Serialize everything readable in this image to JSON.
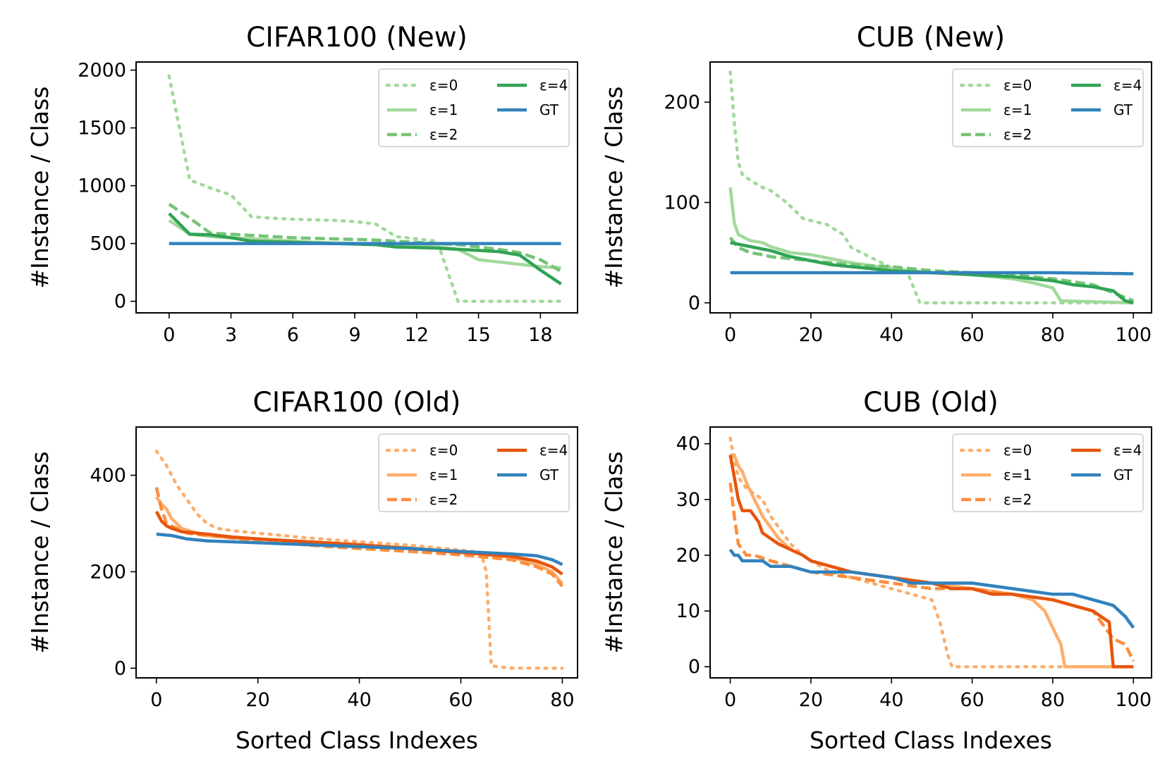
{
  "palette": {
    "new": [
      "#a1d99b",
      "#a1d99b",
      "#74c476",
      "#31a354"
    ],
    "old": [
      "#fdae6b",
      "#fdae6b",
      "#fd8d3c",
      "#e6550d"
    ],
    "gt": "#3182bd"
  },
  "chart_data": [
    {
      "type": "line",
      "title": "CIFAR100 (New)",
      "xlabel": "",
      "ylabel": "#Instance / Class",
      "xlim": [
        -1.6,
        19.8
      ],
      "ylim": [
        -100,
        2070
      ],
      "xticks": [
        0,
        3,
        6,
        9,
        12,
        15,
        18
      ],
      "yticks": [
        0,
        500,
        1000,
        1500,
        2000
      ],
      "group": "new",
      "legend": [
        "ε=0",
        "ε=1",
        "ε=2",
        "ε=4",
        "GT"
      ],
      "series": [
        {
          "name": "ε=0",
          "style": "dotted",
          "x": [
            0,
            1,
            2,
            3,
            4,
            5,
            6,
            7,
            8,
            9,
            10,
            11,
            12,
            13,
            14,
            15,
            16,
            17,
            18,
            19
          ],
          "y": [
            1950,
            1050,
            980,
            920,
            730,
            720,
            710,
            705,
            700,
            690,
            670,
            560,
            540,
            520,
            0,
            0,
            0,
            0,
            0,
            0
          ]
        },
        {
          "name": "ε=1",
          "style": "solid",
          "x": [
            0,
            1,
            2,
            3,
            4,
            5,
            6,
            7,
            8,
            9,
            10,
            11,
            12,
            13,
            14,
            15,
            16,
            17,
            18,
            19
          ],
          "y": [
            700,
            580,
            560,
            550,
            540,
            530,
            520,
            510,
            505,
            500,
            495,
            490,
            480,
            470,
            450,
            360,
            340,
            320,
            300,
            290
          ]
        },
        {
          "name": "ε=2",
          "style": "dashed",
          "x": [
            0,
            1,
            2,
            3,
            4,
            5,
            6,
            7,
            8,
            9,
            10,
            11,
            12,
            13,
            14,
            15,
            16,
            17,
            18,
            19
          ],
          "y": [
            840,
            720,
            590,
            580,
            570,
            560,
            550,
            545,
            540,
            535,
            530,
            520,
            510,
            500,
            490,
            470,
            450,
            420,
            360,
            260
          ]
        },
        {
          "name": "ε=4",
          "style": "solid",
          "x": [
            0,
            1,
            2,
            3,
            4,
            5,
            6,
            7,
            8,
            9,
            10,
            11,
            12,
            13,
            14,
            15,
            16,
            17,
            18,
            19
          ],
          "y": [
            760,
            580,
            575,
            550,
            520,
            515,
            510,
            505,
            500,
            495,
            490,
            470,
            465,
            460,
            450,
            440,
            430,
            400,
            270,
            150
          ]
        },
        {
          "name": "GT",
          "style": "solid",
          "x": [
            0,
            19
          ],
          "y": [
            500,
            500
          ]
        }
      ]
    },
    {
      "type": "line",
      "title": "CUB (New)",
      "xlabel": "",
      "ylabel": "#Instance / Class",
      "xlim": [
        -5,
        104.5
      ],
      "ylim": [
        -10,
        240
      ],
      "xticks": [
        0,
        20,
        40,
        60,
        80,
        100
      ],
      "yticks": [
        0,
        100,
        200
      ],
      "group": "new",
      "legend": [
        "ε=0",
        "ε=1",
        "ε=2",
        "ε=4",
        "GT"
      ],
      "series": [
        {
          "name": "ε=0",
          "style": "dotted",
          "x": [
            0,
            1,
            2,
            3,
            5,
            8,
            10,
            14,
            18,
            20,
            24,
            28,
            30,
            35,
            40,
            44,
            46,
            47,
            60,
            80,
            100
          ],
          "y": [
            230,
            180,
            140,
            128,
            122,
            115,
            112,
            100,
            84,
            82,
            78,
            68,
            55,
            45,
            35,
            30,
            10,
            0,
            0,
            0,
            0
          ]
        },
        {
          "name": "ε=1",
          "style": "solid",
          "x": [
            0,
            1,
            2,
            5,
            8,
            10,
            15,
            20,
            25,
            30,
            40,
            50,
            60,
            70,
            75,
            80,
            82,
            100
          ],
          "y": [
            115,
            80,
            68,
            62,
            60,
            56,
            50,
            48,
            44,
            40,
            34,
            30,
            28,
            24,
            20,
            15,
            2,
            0
          ]
        },
        {
          "name": "ε=2",
          "style": "dashed",
          "x": [
            0,
            2,
            5,
            8,
            10,
            15,
            20,
            25,
            30,
            40,
            50,
            60,
            70,
            80,
            90,
            95,
            100
          ],
          "y": [
            65,
            55,
            50,
            48,
            46,
            44,
            42,
            40,
            38,
            36,
            32,
            30,
            28,
            24,
            18,
            10,
            2
          ]
        },
        {
          "name": "ε=4",
          "style": "solid",
          "x": [
            0,
            5,
            10,
            15,
            20,
            25,
            30,
            35,
            40,
            50,
            60,
            70,
            80,
            85,
            90,
            95,
            98,
            100
          ],
          "y": [
            60,
            56,
            52,
            46,
            42,
            38,
            36,
            34,
            32,
            30,
            28,
            26,
            22,
            18,
            16,
            12,
            2,
            0
          ]
        },
        {
          "name": "GT",
          "style": "solid",
          "x": [
            0,
            60,
            80,
            100
          ],
          "y": [
            30,
            30,
            30,
            29
          ]
        }
      ]
    },
    {
      "type": "line",
      "title": "CIFAR100 (Old)",
      "xlabel": "Sorted Class Indexes",
      "ylabel": "#Instance / Class",
      "xlim": [
        -4,
        83
      ],
      "ylim": [
        -20,
        500
      ],
      "xticks": [
        0,
        20,
        40,
        60,
        80
      ],
      "yticks": [
        0,
        200,
        400
      ],
      "group": "old",
      "legend": [
        "ε=0",
        "ε=1",
        "ε=2",
        "ε=4",
        "GT"
      ],
      "series": [
        {
          "name": "ε=0",
          "style": "dotted",
          "x": [
            0,
            2,
            4,
            6,
            8,
            10,
            12,
            15,
            20,
            30,
            40,
            50,
            60,
            64,
            65,
            66,
            70,
            75,
            80
          ],
          "y": [
            450,
            420,
            380,
            350,
            320,
            300,
            290,
            285,
            280,
            270,
            262,
            255,
            245,
            240,
            200,
            5,
            0,
            0,
            0
          ]
        },
        {
          "name": "ε=1",
          "style": "solid",
          "x": [
            0,
            1,
            2,
            3,
            4,
            5,
            8,
            10,
            15,
            20,
            30,
            40,
            50,
            60,
            70,
            75,
            78,
            80
          ],
          "y": [
            355,
            340,
            330,
            310,
            300,
            290,
            280,
            275,
            270,
            268,
            260,
            255,
            250,
            240,
            230,
            215,
            200,
            175
          ]
        },
        {
          "name": "ε=2",
          "style": "dashed",
          "x": [
            0,
            1,
            2,
            4,
            6,
            10,
            15,
            20,
            30,
            40,
            50,
            60,
            70,
            75,
            78,
            80
          ],
          "y": [
            375,
            330,
            300,
            290,
            280,
            275,
            270,
            265,
            255,
            248,
            242,
            235,
            225,
            210,
            195,
            170
          ]
        },
        {
          "name": "ε=4",
          "style": "solid",
          "x": [
            0,
            1,
            2,
            3,
            5,
            10,
            15,
            20,
            30,
            40,
            50,
            60,
            70,
            75,
            78,
            80
          ],
          "y": [
            325,
            305,
            295,
            290,
            283,
            278,
            272,
            268,
            262,
            256,
            248,
            240,
            232,
            222,
            210,
            195
          ]
        },
        {
          "name": "GT",
          "style": "solid",
          "x": [
            0,
            3,
            6,
            10,
            20,
            30,
            40,
            50,
            60,
            70,
            75,
            78,
            80
          ],
          "y": [
            278,
            275,
            268,
            264,
            260,
            256,
            252,
            248,
            242,
            237,
            233,
            225,
            215
          ]
        }
      ]
    },
    {
      "type": "line",
      "title": "CUB (Old)",
      "xlabel": "Sorted Class Indexes",
      "ylabel": "#Instance / Class",
      "xlim": [
        -5,
        104.5
      ],
      "ylim": [
        -2,
        43
      ],
      "xticks": [
        0,
        20,
        40,
        60,
        80,
        100
      ],
      "yticks": [
        0,
        10,
        20,
        30,
        40
      ],
      "group": "old",
      "legend": [
        "ε=0",
        "ε=1",
        "ε=2",
        "ε=4",
        "GT"
      ],
      "series": [
        {
          "name": "ε=0",
          "style": "dotted",
          "x": [
            0,
            1,
            2,
            3,
            4,
            6,
            8,
            10,
            12,
            15,
            18,
            20,
            25,
            30,
            35,
            40,
            45,
            50,
            52,
            54,
            55,
            60,
            70,
            80,
            100
          ],
          "y": [
            41,
            37,
            34,
            33,
            32,
            31,
            30,
            27,
            25,
            22,
            20,
            19,
            17,
            16,
            15,
            14,
            13,
            12,
            8,
            2,
            0,
            0,
            0,
            0,
            0
          ]
        },
        {
          "name": "ε=1",
          "style": "solid",
          "x": [
            0,
            1,
            2,
            3,
            4,
            6,
            8,
            10,
            12,
            15,
            18,
            20,
            25,
            30,
            40,
            50,
            60,
            70,
            75,
            78,
            80,
            82,
            83,
            90,
            100
          ],
          "y": [
            38,
            38,
            36,
            35,
            33,
            30,
            27,
            25,
            23,
            21,
            20,
            19,
            18,
            17,
            16,
            15,
            14,
            13,
            12,
            10,
            7,
            4,
            0,
            0,
            0
          ]
        },
        {
          "name": "ε=2",
          "style": "dashed",
          "x": [
            0,
            1,
            2,
            3,
            4,
            6,
            10,
            15,
            20,
            30,
            40,
            50,
            60,
            70,
            80,
            85,
            90,
            95,
            98,
            100
          ],
          "y": [
            33,
            27,
            22,
            21,
            20,
            20,
            19,
            18,
            17,
            16,
            15,
            14,
            14,
            13,
            12,
            11,
            10,
            5,
            4,
            1
          ]
        },
        {
          "name": "ε=4",
          "style": "solid",
          "x": [
            0,
            1,
            2,
            3,
            5,
            7,
            8,
            10,
            12,
            15,
            18,
            20,
            25,
            30,
            40,
            50,
            55,
            60,
            65,
            70,
            80,
            85,
            90,
            92,
            94,
            95,
            100
          ],
          "y": [
            38,
            34,
            30,
            28,
            28,
            26,
            24,
            23,
            22,
            21,
            20,
            19,
            18,
            17,
            16,
            15,
            14,
            14,
            13,
            13,
            12,
            11,
            10,
            9,
            8,
            0,
            0
          ]
        },
        {
          "name": "GT",
          "style": "solid",
          "x": [
            0,
            1,
            2,
            3,
            4,
            8,
            10,
            12,
            15,
            20,
            30,
            40,
            45,
            50,
            60,
            70,
            80,
            85,
            90,
            95,
            98,
            100
          ],
          "y": [
            21,
            20,
            20,
            19,
            19,
            19,
            18,
            18,
            18,
            17,
            17,
            16,
            15,
            15,
            15,
            14,
            13,
            13,
            12,
            11,
            9,
            7
          ]
        }
      ]
    }
  ]
}
